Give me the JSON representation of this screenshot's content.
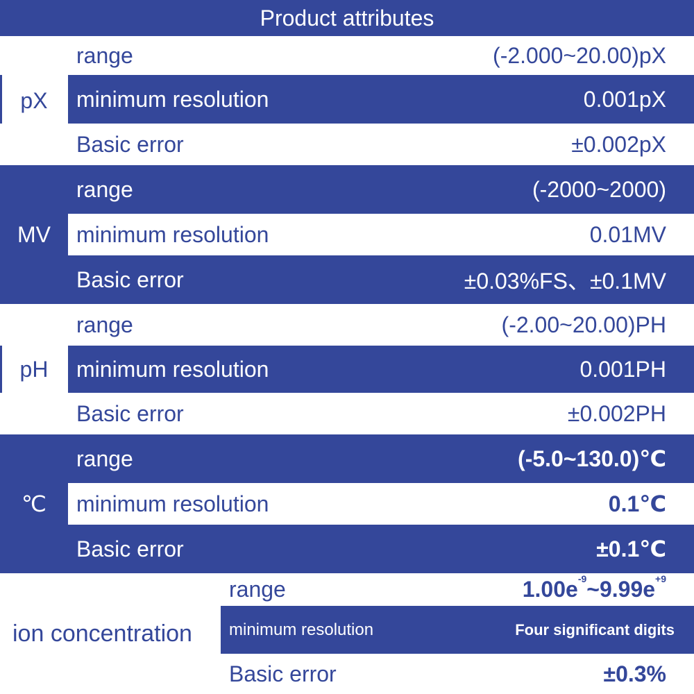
{
  "header": {
    "title": "Product attributes"
  },
  "groups": [
    {
      "label": "pX",
      "rows": [
        {
          "name": "range",
          "value": "(-2.000~20.00)pX"
        },
        {
          "name": "minimum resolution",
          "value": "0.001pX"
        },
        {
          "name": "Basic error",
          "value": "±0.002pX"
        }
      ]
    },
    {
      "label": "MV",
      "rows": [
        {
          "name": "range",
          "value": "(-2000~2000)"
        },
        {
          "name": "minimum resolution",
          "value": "0.01MV"
        },
        {
          "name": "Basic error",
          "value": "±0.03%FS、±0.1MV"
        }
      ]
    },
    {
      "label": "pH",
      "rows": [
        {
          "name": "range",
          "value": "(-2.00~20.00)PH"
        },
        {
          "name": "minimum resolution",
          "value": "0.001PH"
        },
        {
          "name": "Basic error",
          "value": "±0.002PH"
        }
      ]
    },
    {
      "label": "℃",
      "rows": [
        {
          "name": "range",
          "value": "(-5.0~130.0)℃"
        },
        {
          "name": "minimum resolution",
          "value": "0.1℃"
        },
        {
          "name": "Basic error",
          "value": "±0.1℃"
        }
      ]
    },
    {
      "label": "ion concentration",
      "rows": [
        {
          "name": "range",
          "value": [
            "1.00e",
            "-9",
            "~9.99e",
            "+9"
          ]
        },
        {
          "name": "minimum resolution",
          "value": "Four significant digits"
        },
        {
          "name": "Basic error",
          "value": "±0.3%"
        }
      ]
    }
  ]
}
